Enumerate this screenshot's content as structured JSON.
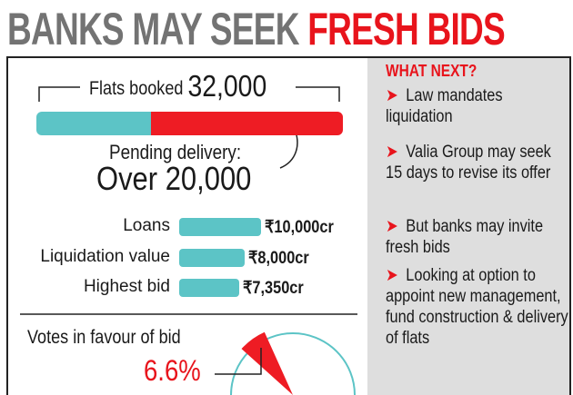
{
  "title": {
    "part1": "BANKS MAY SEEK",
    "part2": "FRESH BIDS"
  },
  "flats": {
    "label": "Flats booked",
    "value": "32,000",
    "pending_label": "Pending delivery:",
    "pending_value": "Over 20,000"
  },
  "bars": [
    {
      "label": "Loans",
      "value_text": "₹10,000cr"
    },
    {
      "label": "Liquidation value",
      "value_text": "₹8,000cr"
    },
    {
      "label": "Highest bid",
      "value_text": "₹7,350cr"
    }
  ],
  "votes": {
    "label": "Votes in favour of bid",
    "value": "6.6%"
  },
  "what_next": {
    "heading": "WHAT NEXT?",
    "items": [
      "Law mandates liquidation",
      "Valia Group may seek 15 days to revise its offer",
      "But banks may invite fresh bids",
      "Looking at option to appoint new management, fund construction & delivery of flats"
    ]
  },
  "colors": {
    "teal": "#5cc4c6",
    "red": "#ee1c24",
    "grey_title": "#737373",
    "panel": "#dedede"
  },
  "chart_data": [
    {
      "type": "bar",
      "orientation": "horizontal",
      "stacked": true,
      "categories": [
        "Flats booked"
      ],
      "series": [
        {
          "values": [
            12000
          ]
        },
        {
          "name": "Pending delivery",
          "values": [
            20000
          ]
        }
      ],
      "total": 32000
    },
    {
      "type": "bar",
      "orientation": "horizontal",
      "categories": [
        "Loans",
        "Liquidation value",
        "Highest bid"
      ],
      "values": [
        10000,
        8000,
        7350
      ],
      "unit": "₹ cr"
    },
    {
      "type": "pie",
      "title": "Votes in favour of bid",
      "values": [
        6.6,
        93.4
      ]
    }
  ]
}
